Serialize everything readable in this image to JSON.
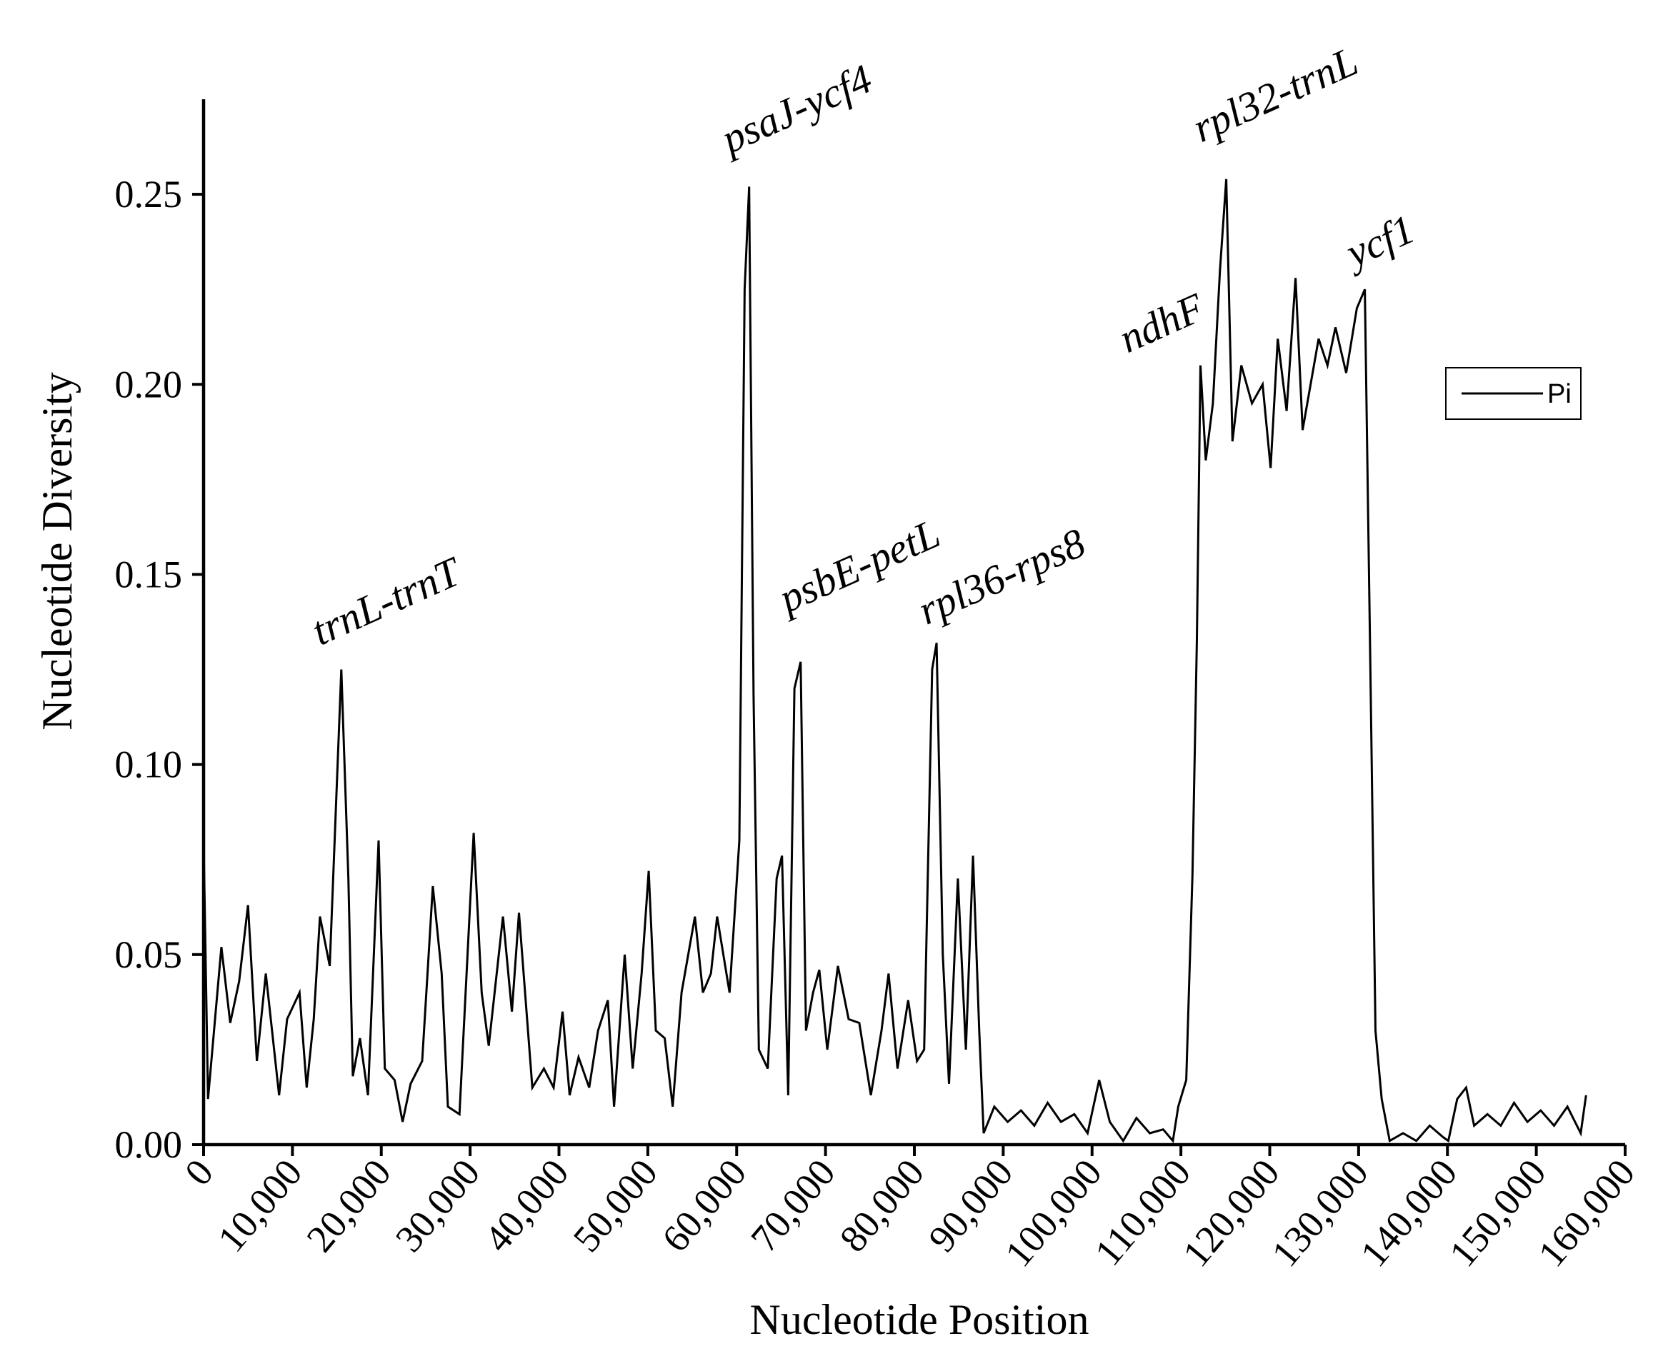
{
  "chart_data": {
    "type": "line",
    "x_label": "Nucleotide Position",
    "y_label": "Nucleotide Diversity",
    "xlim": [
      0,
      160000
    ],
    "ylim": [
      0,
      0.275
    ],
    "xticks": [
      {
        "value": 0,
        "label": "0"
      },
      {
        "value": 10000,
        "label": "10,000"
      },
      {
        "value": 20000,
        "label": "20,000"
      },
      {
        "value": 30000,
        "label": "30,000"
      },
      {
        "value": 40000,
        "label": "40,000"
      },
      {
        "value": 50000,
        "label": "50,000"
      },
      {
        "value": 60000,
        "label": "60,000"
      },
      {
        "value": 70000,
        "label": "70,000"
      },
      {
        "value": 80000,
        "label": "80,000"
      },
      {
        "value": 90000,
        "label": "90,000"
      },
      {
        "value": 100000,
        "label": "100,000"
      },
      {
        "value": 110000,
        "label": "110,000"
      },
      {
        "value": 120000,
        "label": "120,000"
      },
      {
        "value": 130000,
        "label": "130,000"
      },
      {
        "value": 140000,
        "label": "140,000"
      },
      {
        "value": 150000,
        "label": "150,000"
      },
      {
        "value": 160000,
        "label": "160,000"
      }
    ],
    "yticks": [
      {
        "value": 0,
        "label": "0.00"
      },
      {
        "value": 0.05,
        "label": "0.05"
      },
      {
        "value": 0.1,
        "label": "0.10"
      },
      {
        "value": 0.15,
        "label": "0.15"
      },
      {
        "value": 0.2,
        "label": "0.20"
      },
      {
        "value": 0.25,
        "label": "0.25"
      }
    ],
    "annotations": [
      "trnL-trnT",
      "psaJ-ycf4",
      "psbE-petL",
      "rpl36-rps8",
      "ndhF",
      "rpl32-trnL",
      "ycf1"
    ],
    "legend": "right",
    "x": [
      0,
      500,
      2000,
      3000,
      4000,
      5000,
      6000,
      7000,
      8500,
      9400,
      10800,
      11600,
      12400,
      13100,
      14200,
      15500,
      16300,
      16800,
      17600,
      18500,
      19700,
      20400,
      21500,
      22400,
      23300,
      24600,
      25800,
      26800,
      27500,
      28800,
      30400,
      31300,
      32100,
      33700,
      34700,
      35500,
      37000,
      38300,
      39400,
      40400,
      41200,
      42200,
      43400,
      44400,
      45500,
      46200,
      47400,
      48300,
      49300,
      50100,
      50900,
      51900,
      52800,
      53800,
      55300,
      56200,
      57100,
      57800,
      59200,
      60300,
      60900,
      61400,
      61900,
      62500,
      63500,
      64500,
      65100,
      65800,
      66500,
      67200,
      67800,
      68600,
      69300,
      70200,
      71400,
      72600,
      73800,
      75100,
      76300,
      77100,
      78100,
      79300,
      80300,
      81100,
      82000,
      82500,
      83200,
      83900,
      84900,
      85800,
      86600,
      87300,
      87800,
      89000,
      90500,
      92000,
      93500,
      95000,
      96500,
      98000,
      99500,
      100800,
      102000,
      103500,
      105000,
      106500,
      108000,
      109100,
      109700,
      110600,
      111300,
      111800,
      112200,
      112800,
      113600,
      114400,
      115100,
      115800,
      116800,
      118000,
      119200,
      120100,
      120900,
      121900,
      122900,
      123700,
      124600,
      125500,
      126500,
      127400,
      128600,
      129800,
      130700,
      131300,
      131900,
      132600,
      133500,
      135000,
      136500,
      138000,
      139500,
      140100,
      141100,
      142100,
      143000,
      144500,
      146000,
      147500,
      149000,
      150500,
      152000,
      153500,
      155000,
      155600
    ],
    "series": [
      {
        "name": "Pi",
        "color": "#000000",
        "values": [
          0.08,
          0.012,
          0.052,
          0.032,
          0.043,
          0.063,
          0.022,
          0.045,
          0.013,
          0.033,
          0.04,
          0.015,
          0.033,
          0.06,
          0.047,
          0.125,
          0.07,
          0.018,
          0.028,
          0.013,
          0.08,
          0.02,
          0.017,
          0.006,
          0.016,
          0.022,
          0.068,
          0.045,
          0.01,
          0.008,
          0.082,
          0.04,
          0.026,
          0.06,
          0.035,
          0.061,
          0.015,
          0.02,
          0.015,
          0.035,
          0.013,
          0.023,
          0.015,
          0.03,
          0.038,
          0.01,
          0.05,
          0.02,
          0.045,
          0.072,
          0.03,
          0.028,
          0.01,
          0.04,
          0.06,
          0.04,
          0.045,
          0.06,
          0.04,
          0.08,
          0.225,
          0.252,
          0.118,
          0.025,
          0.02,
          0.07,
          0.076,
          0.013,
          0.12,
          0.127,
          0.03,
          0.04,
          0.046,
          0.025,
          0.047,
          0.033,
          0.032,
          0.013,
          0.03,
          0.045,
          0.02,
          0.038,
          0.022,
          0.025,
          0.125,
          0.132,
          0.05,
          0.016,
          0.07,
          0.025,
          0.076,
          0.03,
          0.003,
          0.01,
          0.006,
          0.009,
          0.005,
          0.011,
          0.006,
          0.008,
          0.003,
          0.017,
          0.006,
          0.001,
          0.007,
          0.003,
          0.004,
          0.001,
          0.01,
          0.017,
          0.071,
          0.133,
          0.205,
          0.18,
          0.195,
          0.23,
          0.254,
          0.185,
          0.205,
          0.195,
          0.2,
          0.178,
          0.212,
          0.193,
          0.228,
          0.188,
          0.2,
          0.212,
          0.205,
          0.215,
          0.203,
          0.22,
          0.225,
          0.13,
          0.03,
          0.012,
          0.001,
          0.003,
          0.001,
          0.005,
          0.002,
          0.001,
          0.012,
          0.015,
          0.005,
          0.008,
          0.005,
          0.011,
          0.006,
          0.009,
          0.005,
          0.01,
          0.003,
          0.013
        ]
      }
    ]
  }
}
